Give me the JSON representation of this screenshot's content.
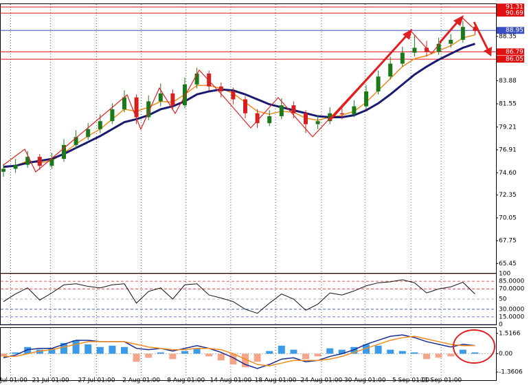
{
  "chart_data": [
    {
      "type": "candlestick",
      "open": [
        74.7,
        75.0,
        75.4,
        76.2,
        75.3,
        76.0,
        77.4,
        78.2,
        79.0,
        79.8,
        81.0,
        82.2,
        80.2,
        81.8,
        82.6,
        81.4,
        83.5,
        84.6,
        83.3,
        82.8,
        82.0,
        80.6,
        79.6,
        80.3,
        81.4,
        80.6,
        79.5,
        79.8,
        80.6,
        80.5,
        81.3,
        82.8,
        84.3,
        85.6,
        86.7,
        87.2,
        86.8,
        87.6,
        88.0,
        89.3
      ],
      "high": [
        75.5,
        76.0,
        76.8,
        76.5,
        76.6,
        78.0,
        78.9,
        79.6,
        80.5,
        81.6,
        82.9,
        82.5,
        82.4,
        83.6,
        83.0,
        84.2,
        85.2,
        84.9,
        83.7,
        83.2,
        82.3,
        81.0,
        80.9,
        82.1,
        81.8,
        80.9,
        80.4,
        81.2,
        81.1,
        81.9,
        83.4,
        84.9,
        86.3,
        87.3,
        88.5,
        87.9,
        88.2,
        88.6,
        89.9,
        89.6
      ],
      "low": [
        74.2,
        74.6,
        75.1,
        74.9,
        75.0,
        75.7,
        77.0,
        77.9,
        78.6,
        79.5,
        80.7,
        79.5,
        79.9,
        81.3,
        80.9,
        81.1,
        83.1,
        82.9,
        82.2,
        81.5,
        80.1,
        79.1,
        79.3,
        80.0,
        80.1,
        78.6,
        79.0,
        79.5,
        80.0,
        80.2,
        81.0,
        82.5,
        84.0,
        85.3,
        86.3,
        86.3,
        86.5,
        87.2,
        87.7,
        88.5
      ],
      "close": [
        75.0,
        75.4,
        76.2,
        75.3,
        76.0,
        77.4,
        78.2,
        79.0,
        79.8,
        81.0,
        82.2,
        80.2,
        81.8,
        82.6,
        81.4,
        83.5,
        84.6,
        83.3,
        82.8,
        82.0,
        80.6,
        79.6,
        80.3,
        81.4,
        80.6,
        79.5,
        79.8,
        80.6,
        80.5,
        81.3,
        82.8,
        84.3,
        85.6,
        86.7,
        87.2,
        86.8,
        87.6,
        88.0,
        89.3,
        88.9
      ],
      "up_color": "#1a7a1a",
      "down_color": "#d42020",
      "series": [
        {
          "color": "#f08c1e",
          "width": 1.5,
          "values": [
            75.1,
            75.3,
            75.8,
            75.6,
            75.8,
            76.6,
            77.5,
            78.3,
            79.0,
            80.0,
            81.0,
            80.8,
            81.2,
            81.8,
            81.7,
            82.5,
            83.4,
            83.4,
            83.1,
            82.6,
            81.7,
            80.8,
            80.5,
            80.8,
            80.7,
            80.1,
            79.9,
            80.2,
            80.4,
            80.8,
            81.7,
            82.9,
            84.1,
            85.3,
            86.1,
            86.4,
            86.9,
            87.4,
            88.2,
            88.5
          ]
        },
        {
          "color": "#1a1a6e",
          "width": 3,
          "values": [
            75.2,
            75.3,
            75.6,
            75.8,
            76.0,
            76.5,
            77.1,
            77.7,
            78.3,
            79.0,
            79.7,
            80.0,
            80.4,
            81.0,
            81.3,
            81.8,
            82.5,
            82.8,
            83.0,
            82.9,
            82.5,
            82.0,
            81.5,
            81.2,
            80.9,
            80.6,
            80.3,
            80.2,
            80.2,
            80.4,
            80.9,
            81.6,
            82.5,
            83.5,
            84.5,
            85.3,
            86.0,
            86.6,
            87.2,
            87.6
          ]
        }
      ],
      "ylim": [
        64.5,
        91.6
      ],
      "yticks": [
        88.35,
        83.88,
        81.55,
        79.21,
        76.91,
        {
          "value": 74.6,
          "label": "74.60"
        },
        72.35,
        70.05,
        67.75,
        65.45
      ],
      "levels": [
        {
          "value": 91.31,
          "color": "#e01010"
        },
        {
          "value": 90.69,
          "color": "#e01010"
        },
        {
          "value": 88.95,
          "color": "#3a4fc4"
        },
        {
          "value": 86.79,
          "color": "#e01010"
        },
        {
          "value": 86.05,
          "color": "#e01010"
        }
      ],
      "x_labels": [
        {
          "value": 0.6,
          "label": "Jul 01:00"
        },
        {
          "value": 3.9,
          "label": "21 Jul 01:00"
        },
        {
          "value": 7.7,
          "label": "27 Jul 01:00"
        },
        {
          "value": 11.4,
          "label": "2 Aug 01:00"
        },
        {
          "value": 15.1,
          "label": "8 Aug 01:00"
        },
        {
          "value": 18.8,
          "label": "14 Aug 01:00"
        },
        {
          "value": 22.5,
          "label": "18 Aug 01:00"
        },
        {
          "value": 26.3,
          "label": "24 Aug 01:00"
        },
        {
          "value": 29.9,
          "label": "30 Aug 01:00"
        },
        {
          "value": 33.7,
          "label": "5 Sep 01:00"
        },
        {
          "value": 36.2,
          "label": "11 Sep 01:00"
        }
      ]
    },
    {
      "type": "line",
      "values": [
        45,
        60,
        72,
        48,
        62,
        78,
        80,
        75,
        72,
        78,
        80,
        42,
        65,
        72,
        50,
        78,
        80,
        58,
        52,
        45,
        30,
        22,
        42,
        60,
        50,
        28,
        40,
        62,
        58,
        66,
        76,
        82,
        84,
        88,
        82,
        62,
        70,
        74,
        83,
        60
      ],
      "color": "#111111",
      "ylim": [
        0,
        100
      ],
      "yticks": [
        100,
        {
          "value": 85,
          "label": "85.0000"
        },
        {
          "value": 70,
          "label": "70.0000"
        },
        50,
        {
          "value": 30,
          "label": "30.0000"
        },
        {
          "value": 15,
          "label": "15.0000"
        },
        0
      ]
    },
    {
      "type": "bar",
      "values": [
        -0.2,
        0.1,
        0.5,
        0.3,
        0.4,
        0.8,
        1.0,
        0.7,
        0.5,
        0.6,
        0.5,
        -0.6,
        -0.3,
        0.1,
        -0.4,
        0.2,
        0.4,
        -0.2,
        -0.5,
        -0.8,
        -1.0,
        -0.6,
        0.2,
        0.6,
        0.3,
        -0.4,
        -0.2,
        0.4,
        0.3,
        0.5,
        0.7,
        0.6,
        0.3,
        0.2,
        0.1,
        -0.4,
        -0.3,
        -0.2,
        0.3,
        0.1
      ],
      "up_color": "#3b9be8",
      "down_color": "#f4a58a",
      "series": [
        {
          "color": "#1a2a8e",
          "width": 1.5,
          "values": [
            -0.3,
            -0.1,
            0.3,
            0.4,
            0.4,
            0.7,
            1.0,
            1.0,
            0.9,
            0.9,
            0.9,
            0.4,
            0.3,
            0.4,
            0.2,
            0.4,
            0.6,
            0.4,
            0.1,
            -0.3,
            -0.8,
            -1.1,
            -0.8,
            -0.4,
            -0.3,
            -0.6,
            -0.5,
            -0.2,
            0.0,
            0.3,
            0.7,
            1.0,
            1.3,
            1.4,
            1.2,
            0.9,
            0.7,
            0.5,
            0.7,
            0.6
          ]
        },
        {
          "color": "#f08c1e",
          "width": 1.5,
          "values": [
            -0.2,
            -0.2,
            0.0,
            0.2,
            0.3,
            0.5,
            0.7,
            0.9,
            0.9,
            0.9,
            0.9,
            0.7,
            0.5,
            0.4,
            0.3,
            0.3,
            0.4,
            0.4,
            0.3,
            0.0,
            -0.4,
            -0.8,
            -0.9,
            -0.7,
            -0.5,
            -0.5,
            -0.5,
            -0.4,
            -0.2,
            0.1,
            0.4,
            0.7,
            1.0,
            1.2,
            1.3,
            1.1,
            0.9,
            0.7,
            0.6,
            0.6
          ]
        }
      ],
      "ylim": [
        -1.97,
        1.92
      ],
      "yticks": [
        1.5166,
        {
          "value": 0,
          "label": "0.00"
        },
        -1.3606
      ]
    }
  ]
}
